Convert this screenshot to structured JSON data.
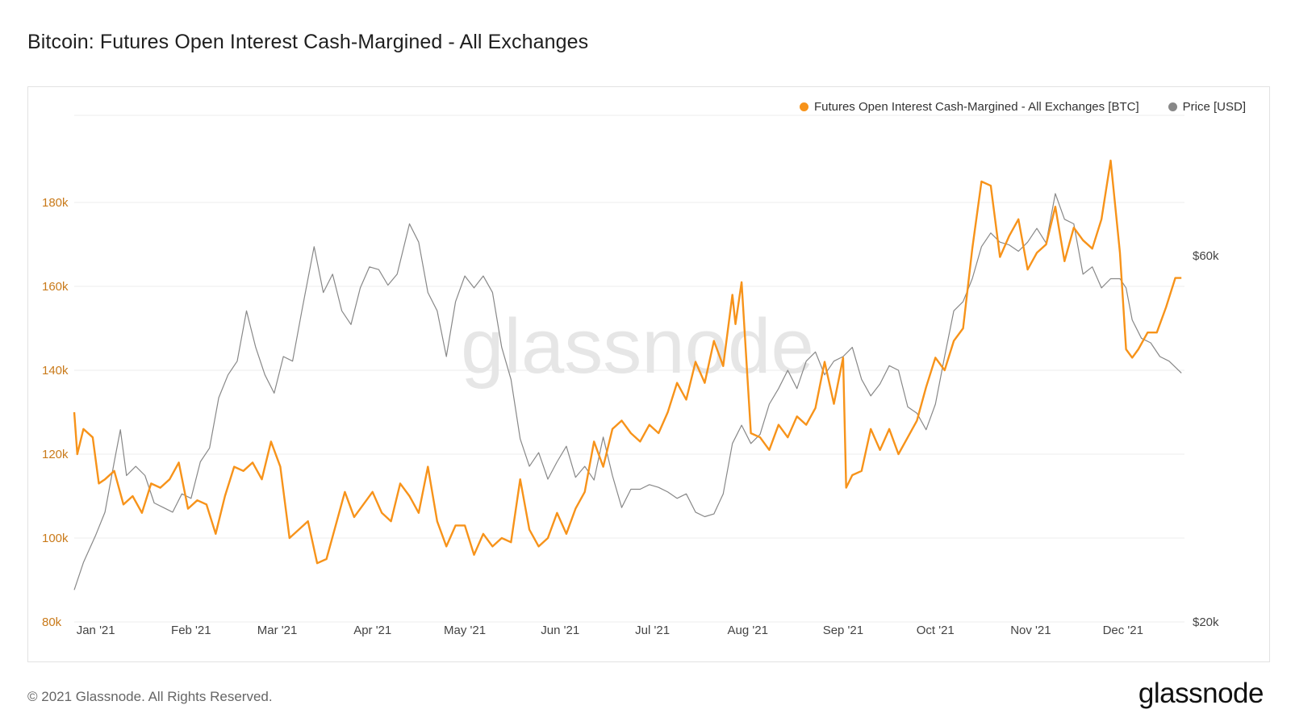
{
  "page": {
    "title": "Bitcoin: Futures Open Interest Cash-Margined - All Exchanges",
    "footer": "© 2021 Glassnode. All Rights Reserved.",
    "logo": "glassnode",
    "watermark": "glassnode"
  },
  "legend": {
    "series1_label": "Futures Open Interest Cash-Margined - All Exchanges [BTC]",
    "series2_label": "Price [USD]"
  },
  "colors": {
    "oi": "#f7931a",
    "price": "#888888",
    "axis_left": "#c97a1a",
    "grid": "#ececec"
  },
  "chart_data": {
    "type": "line",
    "title": "Bitcoin: Futures Open Interest Cash-Margined - All Exchanges",
    "x_ticks": [
      "Jan '21",
      "Feb '21",
      "Mar '21",
      "Apr '21",
      "May '21",
      "Jun '21",
      "Jul '21",
      "Aug '21",
      "Sep '21",
      "Oct '21",
      "Nov '21",
      "Dec '21"
    ],
    "x_range": [
      "2020-12-25",
      "2021-12-21"
    ],
    "y_left": {
      "label": "BTC",
      "ticks": [
        80000,
        100000,
        120000,
        140000,
        160000,
        180000
      ],
      "tick_labels": [
        "80k",
        "100k",
        "120k",
        "140k",
        "160k",
        "180k"
      ],
      "range": [
        80000,
        200000
      ]
    },
    "y_right": {
      "label": "USD",
      "ticks": [
        20000,
        60000
      ],
      "tick_labels": [
        "$20k",
        "$60k"
      ],
      "range": [
        20000,
        75000
      ]
    },
    "series": [
      {
        "name": "Futures Open Interest Cash-Margined - All Exchanges [BTC]",
        "axis": "left",
        "color": "#f7931a",
        "dates": [
          "2020-12-25",
          "2020-12-26",
          "2020-12-28",
          "2020-12-31",
          "2021-01-02",
          "2021-01-04",
          "2021-01-07",
          "2021-01-10",
          "2021-01-13",
          "2021-01-16",
          "2021-01-19",
          "2021-01-22",
          "2021-01-25",
          "2021-01-28",
          "2021-01-31",
          "2021-02-03",
          "2021-02-06",
          "2021-02-09",
          "2021-02-12",
          "2021-02-15",
          "2021-02-18",
          "2021-02-21",
          "2021-02-24",
          "2021-02-27",
          "2021-03-02",
          "2021-03-05",
          "2021-03-08",
          "2021-03-11",
          "2021-03-14",
          "2021-03-17",
          "2021-03-20",
          "2021-03-23",
          "2021-03-26",
          "2021-03-29",
          "2021-04-01",
          "2021-04-04",
          "2021-04-07",
          "2021-04-10",
          "2021-04-13",
          "2021-04-16",
          "2021-04-19",
          "2021-04-22",
          "2021-04-25",
          "2021-04-28",
          "2021-05-01",
          "2021-05-04",
          "2021-05-07",
          "2021-05-10",
          "2021-05-13",
          "2021-05-16",
          "2021-05-19",
          "2021-05-22",
          "2021-05-25",
          "2021-05-28",
          "2021-05-31",
          "2021-06-03",
          "2021-06-06",
          "2021-06-09",
          "2021-06-12",
          "2021-06-15",
          "2021-06-18",
          "2021-06-21",
          "2021-06-24",
          "2021-06-27",
          "2021-06-30",
          "2021-07-03",
          "2021-07-06",
          "2021-07-09",
          "2021-07-12",
          "2021-07-15",
          "2021-07-18",
          "2021-07-21",
          "2021-07-24",
          "2021-07-27",
          "2021-07-28",
          "2021-07-30",
          "2021-08-02",
          "2021-08-05",
          "2021-08-08",
          "2021-08-11",
          "2021-08-14",
          "2021-08-17",
          "2021-08-20",
          "2021-08-23",
          "2021-08-26",
          "2021-08-29",
          "2021-09-01",
          "2021-09-02",
          "2021-09-04",
          "2021-09-07",
          "2021-09-10",
          "2021-09-13",
          "2021-09-16",
          "2021-09-19",
          "2021-09-22",
          "2021-09-25",
          "2021-09-28",
          "2021-10-01",
          "2021-10-04",
          "2021-10-07",
          "2021-10-10",
          "2021-10-13",
          "2021-10-16",
          "2021-10-19",
          "2021-10-22",
          "2021-10-25",
          "2021-10-28",
          "2021-10-31",
          "2021-11-03",
          "2021-11-06",
          "2021-11-09",
          "2021-11-12",
          "2021-11-15",
          "2021-11-18",
          "2021-11-21",
          "2021-11-24",
          "2021-11-27",
          "2021-11-30",
          "2021-12-02",
          "2021-12-04",
          "2021-12-06",
          "2021-12-09",
          "2021-12-12",
          "2021-12-15",
          "2021-12-18",
          "2021-12-20"
        ],
        "values": [
          130000,
          120000,
          126000,
          124000,
          113000,
          114000,
          116000,
          108000,
          110000,
          106000,
          113000,
          112000,
          114000,
          118000,
          107000,
          109000,
          108000,
          101000,
          110000,
          117000,
          116000,
          118000,
          114000,
          123000,
          117000,
          100000,
          102000,
          104000,
          94000,
          95000,
          103000,
          111000,
          105000,
          108000,
          111000,
          106000,
          104000,
          113000,
          110000,
          106000,
          117000,
          104000,
          98000,
          103000,
          103000,
          96000,
          101000,
          98000,
          100000,
          99000,
          114000,
          102000,
          98000,
          100000,
          106000,
          101000,
          107000,
          111000,
          123000,
          117000,
          126000,
          128000,
          125000,
          123000,
          127000,
          125000,
          130000,
          137000,
          133000,
          142000,
          137000,
          147000,
          141000,
          158000,
          151000,
          161000,
          125000,
          124000,
          121000,
          127000,
          124000,
          129000,
          127000,
          131000,
          142000,
          132000,
          143000,
          112000,
          115000,
          116000,
          126000,
          121000,
          126000,
          120000,
          124000,
          128000,
          136000,
          143000,
          140000,
          147000,
          150000,
          169000,
          185000,
          184000,
          167000,
          172000,
          176000,
          164000,
          168000,
          170000,
          179000,
          166000,
          174000,
          171000,
          169000,
          176000,
          190000,
          168000,
          145000,
          143000,
          145000,
          149000,
          149000,
          155000,
          162000,
          162000
        ]
      },
      {
        "name": "Price [USD]",
        "axis": "right",
        "color": "#888888",
        "dates": [
          "2020-12-25",
          "2020-12-28",
          "2021-01-01",
          "2021-01-04",
          "2021-01-07",
          "2021-01-09",
          "2021-01-11",
          "2021-01-14",
          "2021-01-17",
          "2021-01-20",
          "2021-01-23",
          "2021-01-26",
          "2021-01-29",
          "2021-02-01",
          "2021-02-04",
          "2021-02-07",
          "2021-02-10",
          "2021-02-13",
          "2021-02-16",
          "2021-02-19",
          "2021-02-22",
          "2021-02-25",
          "2021-02-28",
          "2021-03-03",
          "2021-03-06",
          "2021-03-09",
          "2021-03-13",
          "2021-03-16",
          "2021-03-19",
          "2021-03-22",
          "2021-03-25",
          "2021-03-28",
          "2021-03-31",
          "2021-04-03",
          "2021-04-06",
          "2021-04-09",
          "2021-04-13",
          "2021-04-16",
          "2021-04-19",
          "2021-04-22",
          "2021-04-25",
          "2021-04-28",
          "2021-05-01",
          "2021-05-04",
          "2021-05-07",
          "2021-05-10",
          "2021-05-13",
          "2021-05-16",
          "2021-05-19",
          "2021-05-22",
          "2021-05-25",
          "2021-05-28",
          "2021-05-31",
          "2021-06-03",
          "2021-06-06",
          "2021-06-09",
          "2021-06-12",
          "2021-06-15",
          "2021-06-18",
          "2021-06-21",
          "2021-06-24",
          "2021-06-27",
          "2021-06-30",
          "2021-07-03",
          "2021-07-06",
          "2021-07-09",
          "2021-07-12",
          "2021-07-15",
          "2021-07-18",
          "2021-07-21",
          "2021-07-24",
          "2021-07-27",
          "2021-07-30",
          "2021-08-02",
          "2021-08-05",
          "2021-08-08",
          "2021-08-11",
          "2021-08-14",
          "2021-08-17",
          "2021-08-20",
          "2021-08-23",
          "2021-08-26",
          "2021-08-29",
          "2021-09-01",
          "2021-09-04",
          "2021-09-07",
          "2021-09-10",
          "2021-09-13",
          "2021-09-16",
          "2021-09-19",
          "2021-09-22",
          "2021-09-25",
          "2021-09-28",
          "2021-10-01",
          "2021-10-04",
          "2021-10-07",
          "2021-10-10",
          "2021-10-13",
          "2021-10-16",
          "2021-10-19",
          "2021-10-22",
          "2021-10-25",
          "2021-10-28",
          "2021-10-31",
          "2021-11-03",
          "2021-11-06",
          "2021-11-09",
          "2021-11-12",
          "2021-11-15",
          "2021-11-18",
          "2021-11-21",
          "2021-11-24",
          "2021-11-27",
          "2021-11-30",
          "2021-12-02",
          "2021-12-04",
          "2021-12-07",
          "2021-12-10",
          "2021-12-13",
          "2021-12-16",
          "2021-12-20"
        ],
        "values": [
          23500,
          26500,
          29500,
          32000,
          37500,
          41000,
          36000,
          37000,
          36000,
          33000,
          32500,
          32000,
          34000,
          33500,
          37500,
          39000,
          44500,
          47000,
          48500,
          54000,
          50000,
          47000,
          45000,
          49000,
          48500,
          54000,
          61000,
          56000,
          58000,
          54000,
          52500,
          56500,
          58800,
          58500,
          56800,
          58000,
          63500,
          61500,
          56000,
          54000,
          49000,
          55000,
          57800,
          56500,
          57800,
          56000,
          50000,
          46500,
          40000,
          37000,
          38500,
          35600,
          37500,
          39200,
          35800,
          37000,
          35500,
          40200,
          36000,
          32500,
          34500,
          34500,
          35000,
          34700,
          34200,
          33500,
          34000,
          32000,
          31500,
          31800,
          34000,
          39500,
          41500,
          39500,
          40500,
          43800,
          45500,
          47500,
          45500,
          48500,
          49500,
          47000,
          48500,
          49000,
          50000,
          46500,
          44700,
          46000,
          48000,
          47500,
          43500,
          42800,
          41000,
          43800,
          49000,
          54000,
          55000,
          57500,
          61000,
          62500,
          61500,
          61200,
          60500,
          61500,
          63000,
          61400,
          66800,
          64000,
          63500,
          58000,
          58800,
          56500,
          57500,
          57500,
          56500,
          53000,
          51000,
          50500,
          49000,
          48500,
          47200
        ]
      }
    ]
  }
}
